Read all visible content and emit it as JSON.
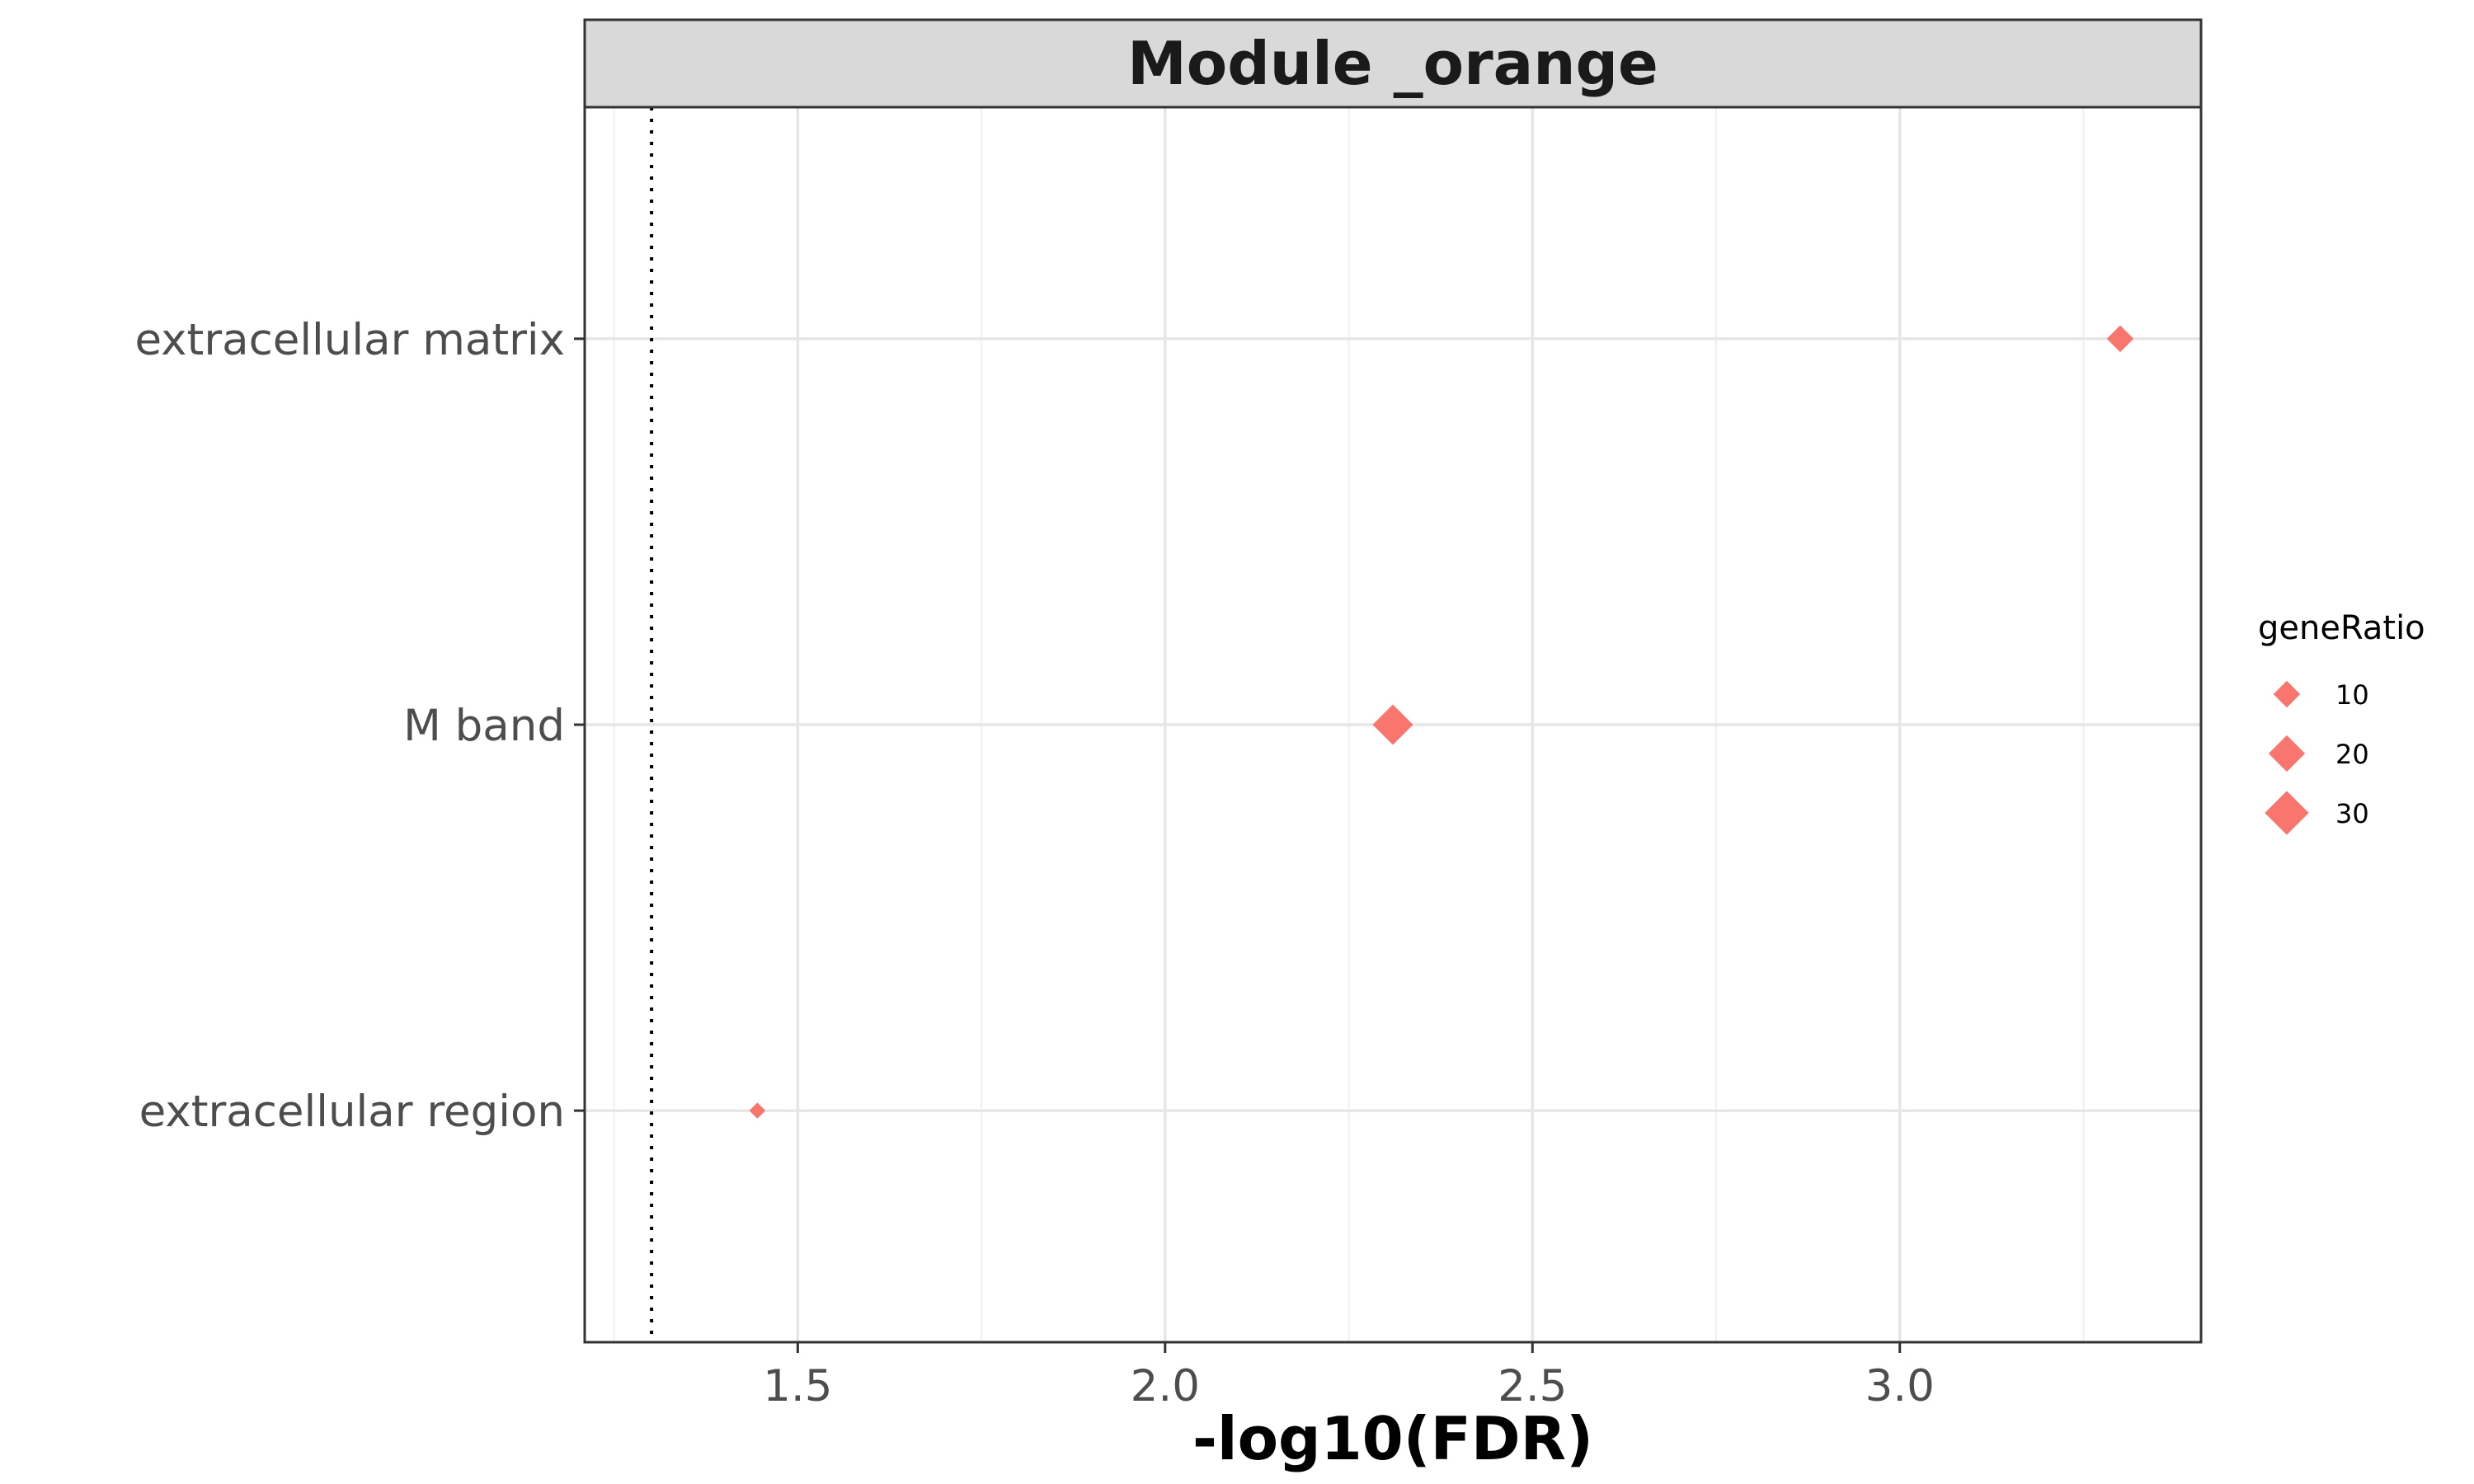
{
  "chart_data": {
    "type": "scatter",
    "title": "Module _orange",
    "xlabel": "-log10(FDR)",
    "ylabel": "",
    "xlim": [
      1.21,
      3.41
    ],
    "x_ticks": [
      1.5,
      2.0,
      2.5,
      3.0
    ],
    "x_tick_labels": [
      "1.5",
      "2.0",
      "2.5",
      "3.0"
    ],
    "categories": [
      "extracellular matrix",
      "M band",
      "extracellular region"
    ],
    "grid": true,
    "threshold_line": {
      "x": 1.30103,
      "style": "dotted"
    },
    "marker": "diamond",
    "color": "#F8766D",
    "points": [
      {
        "term": "extracellular matrix",
        "x": 3.3,
        "geneRatio": 10
      },
      {
        "term": "M band",
        "x": 2.31,
        "geneRatio": 25
      },
      {
        "term": "extracellular region",
        "x": 1.445,
        "geneRatio": 3
      }
    ],
    "legend": {
      "title": "geneRatio",
      "position": "right",
      "entries": [
        {
          "label": "10",
          "value": 10
        },
        {
          "label": "20",
          "value": 20
        },
        {
          "label": "30",
          "value": 30
        }
      ]
    }
  }
}
